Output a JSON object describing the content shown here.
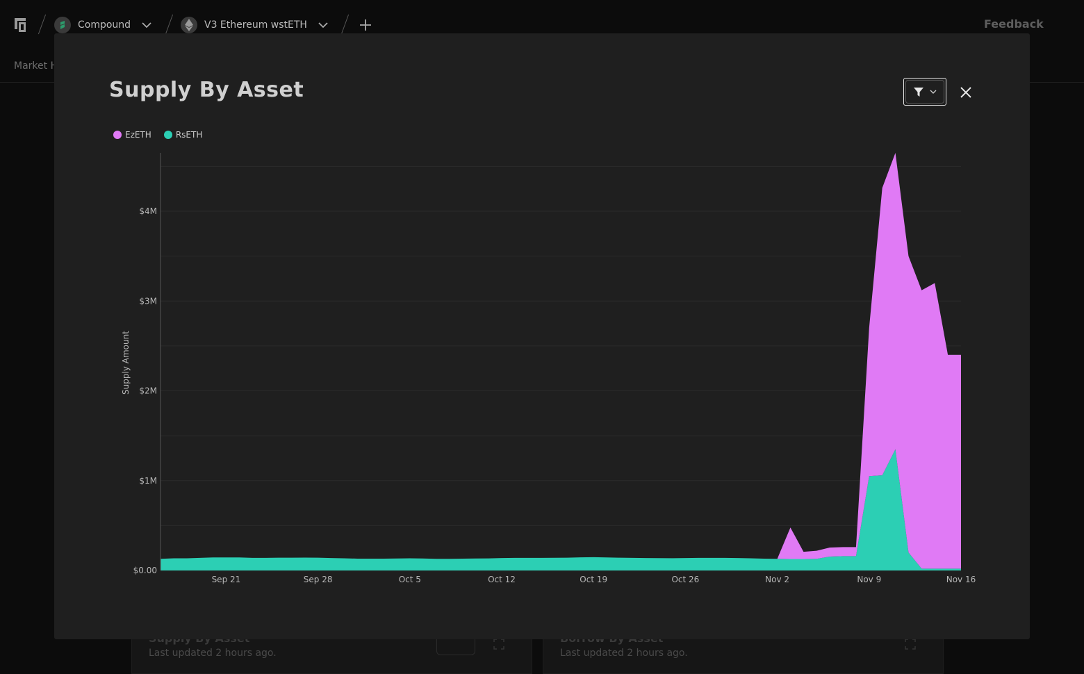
{
  "topbar": {
    "breadcrumb": [
      {
        "label": "Compound",
        "icon": "compound-logo-icon"
      },
      {
        "label": "V3 Ethereum wstETH",
        "icon": "ethereum-icon"
      }
    ],
    "feedback_label": "Feedback"
  },
  "subnav": {
    "tab_label": "Market H"
  },
  "background_cards": [
    {
      "title": "Supply By Asset",
      "subtitle": "Last updated 2 hours ago."
    },
    {
      "title": "Borrow By Asset",
      "subtitle": "Last updated 2 hours ago."
    }
  ],
  "modal": {
    "title": "Supply By Asset",
    "filter_icon": "filter-icon",
    "close_icon": "close-icon"
  },
  "colors": {
    "ezeth": "#e07af5",
    "rseth": "#2ccfb4",
    "modal_bg": "#1f1f1f",
    "page_bg": "#0c0c0c"
  },
  "chart_data": {
    "type": "area",
    "stacked": true,
    "ylabel": "Supply Amount",
    "xlabel": "",
    "x_ticks": [
      "Sep 21",
      "Sep 28",
      "Oct 5",
      "Oct 12",
      "Oct 19",
      "Oct 26",
      "Nov 2",
      "Nov 9",
      "Nov 16"
    ],
    "y_ticks": [
      "$0.00",
      "$1M",
      "$2M",
      "$3M",
      "$4M"
    ],
    "ylim": [
      0,
      4650000
    ],
    "xlim": [
      "2023-09-16",
      "2023-11-16"
    ],
    "legend": "top-left",
    "grid": true,
    "dates": [
      "2023-09-16",
      "2023-09-17",
      "2023-09-18",
      "2023-09-19",
      "2023-09-20",
      "2023-09-21",
      "2023-09-22",
      "2023-09-23",
      "2023-09-24",
      "2023-09-25",
      "2023-09-26",
      "2023-09-27",
      "2023-09-28",
      "2023-09-29",
      "2023-09-30",
      "2023-10-01",
      "2023-10-02",
      "2023-10-03",
      "2023-10-04",
      "2023-10-05",
      "2023-10-06",
      "2023-10-07",
      "2023-10-08",
      "2023-10-09",
      "2023-10-10",
      "2023-10-11",
      "2023-10-12",
      "2023-10-13",
      "2023-10-14",
      "2023-10-15",
      "2023-10-16",
      "2023-10-17",
      "2023-10-18",
      "2023-10-19",
      "2023-10-20",
      "2023-10-21",
      "2023-10-22",
      "2023-10-23",
      "2023-10-24",
      "2023-10-25",
      "2023-10-26",
      "2023-10-27",
      "2023-10-28",
      "2023-10-29",
      "2023-10-30",
      "2023-10-31",
      "2023-11-01",
      "2023-11-02",
      "2023-11-03",
      "2023-11-04",
      "2023-11-05",
      "2023-11-06",
      "2023-11-07",
      "2023-11-08",
      "2023-11-09",
      "2023-11-10",
      "2023-11-11",
      "2023-11-12",
      "2023-11-13",
      "2023-11-14",
      "2023-11-15",
      "2023-11-16"
    ],
    "series": [
      {
        "name": "RsETH",
        "color": "#2ccfb4",
        "values": [
          130000,
          135000,
          135000,
          140000,
          145000,
          145000,
          145000,
          140000,
          140000,
          142000,
          142000,
          143000,
          142000,
          138000,
          135000,
          132000,
          132000,
          132000,
          133000,
          135000,
          133000,
          130000,
          130000,
          132000,
          133000,
          134000,
          138000,
          140000,
          140000,
          140000,
          141000,
          142000,
          146000,
          148000,
          145000,
          142000,
          140000,
          138000,
          137000,
          136000,
          138000,
          140000,
          140000,
          140000,
          138000,
          135000,
          132000,
          130000,
          128000,
          128000,
          130000,
          155000,
          160000,
          160000,
          1050000,
          1060000,
          1350000,
          200000,
          20000,
          20000,
          20000,
          20000
        ]
      },
      {
        "name": "EzETH",
        "color": "#e07af5",
        "values": [
          0,
          0,
          0,
          0,
          0,
          0,
          0,
          0,
          0,
          0,
          0,
          0,
          0,
          0,
          0,
          0,
          0,
          0,
          0,
          0,
          0,
          0,
          0,
          0,
          0,
          0,
          0,
          0,
          0,
          0,
          0,
          0,
          0,
          0,
          0,
          0,
          0,
          0,
          0,
          0,
          0,
          0,
          0,
          0,
          0,
          0,
          0,
          0,
          350000,
          80000,
          90000,
          100000,
          100000,
          100000,
          1650000,
          3200000,
          3300000,
          3300000,
          3100000,
          3180000,
          2380000,
          2380000
        ]
      }
    ]
  }
}
